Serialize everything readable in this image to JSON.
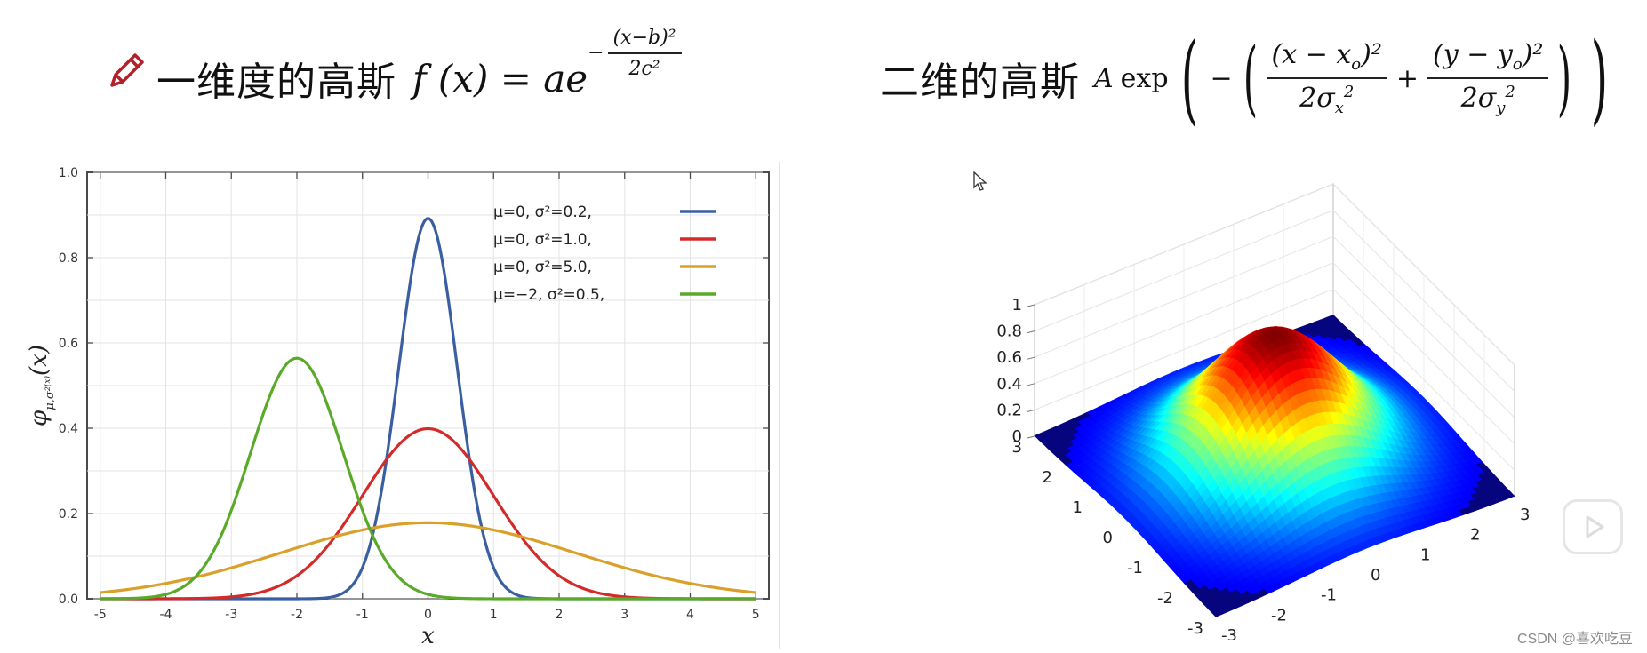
{
  "left_title": {
    "label": "一维度的高斯",
    "formula": {
      "lhs": "f (x) = ae",
      "exp_sign": "−",
      "exp_num": "(x−b)²",
      "exp_den": "2c²"
    }
  },
  "right_title": {
    "label": "二维的高斯",
    "formula": {
      "A": "A",
      "exp": "exp",
      "num1": "(x − x",
      "sub1": "o",
      "sup1": ")²",
      "den1": "2σ",
      "den1_sub": "x",
      "den1_sup": "2",
      "num2": "(y − y",
      "sub2": "o",
      "sup2": ")²",
      "den2": "2σ",
      "den2_sub": "y",
      "den2_sup": "2"
    }
  },
  "chart_data": [
    {
      "type": "line",
      "xlabel": "x",
      "ylabel": "φ μ,σ² (x)",
      "xlim": [
        -5,
        5
      ],
      "ylim": [
        0,
        1.0
      ],
      "xticks": [
        -5,
        -4,
        -3,
        -2,
        -1,
        0,
        1,
        2,
        3,
        4,
        5
      ],
      "yticks": [
        "0.0",
        "0.2",
        "0.4",
        "0.6",
        "0.8",
        "1.0"
      ],
      "grid": true,
      "legend_position": "top-right",
      "series": [
        {
          "name": "μ=0,   σ²=0.2,",
          "mu": 0,
          "sigma2": 0.2,
          "color": "#3a5fa0"
        },
        {
          "name": "μ=0,   σ²=1.0,",
          "mu": 0,
          "sigma2": 1.0,
          "color": "#d42a2a"
        },
        {
          "name": "μ=0,   σ²=5.0,",
          "mu": 0,
          "sigma2": 5.0,
          "color": "#d9a02a"
        },
        {
          "name": "μ=−2, σ²=0.5,",
          "mu": -2,
          "sigma2": 0.5,
          "color": "#5aaa2a"
        }
      ]
    },
    {
      "type": "surface",
      "x_ticks": [
        "3",
        "2",
        "1",
        "0",
        "-1",
        "-2",
        "-3"
      ],
      "y_ticks": [
        "-3",
        "-2",
        "-1",
        "0",
        "1",
        "2",
        "3"
      ],
      "z_ticks": [
        "0",
        "0.2",
        "0.4",
        "0.6",
        "0.8",
        "1"
      ],
      "zlim": [
        0,
        1
      ],
      "colormap": "jet",
      "peak": 1
    }
  ],
  "watermark": "CSDN @喜欢吃豆"
}
